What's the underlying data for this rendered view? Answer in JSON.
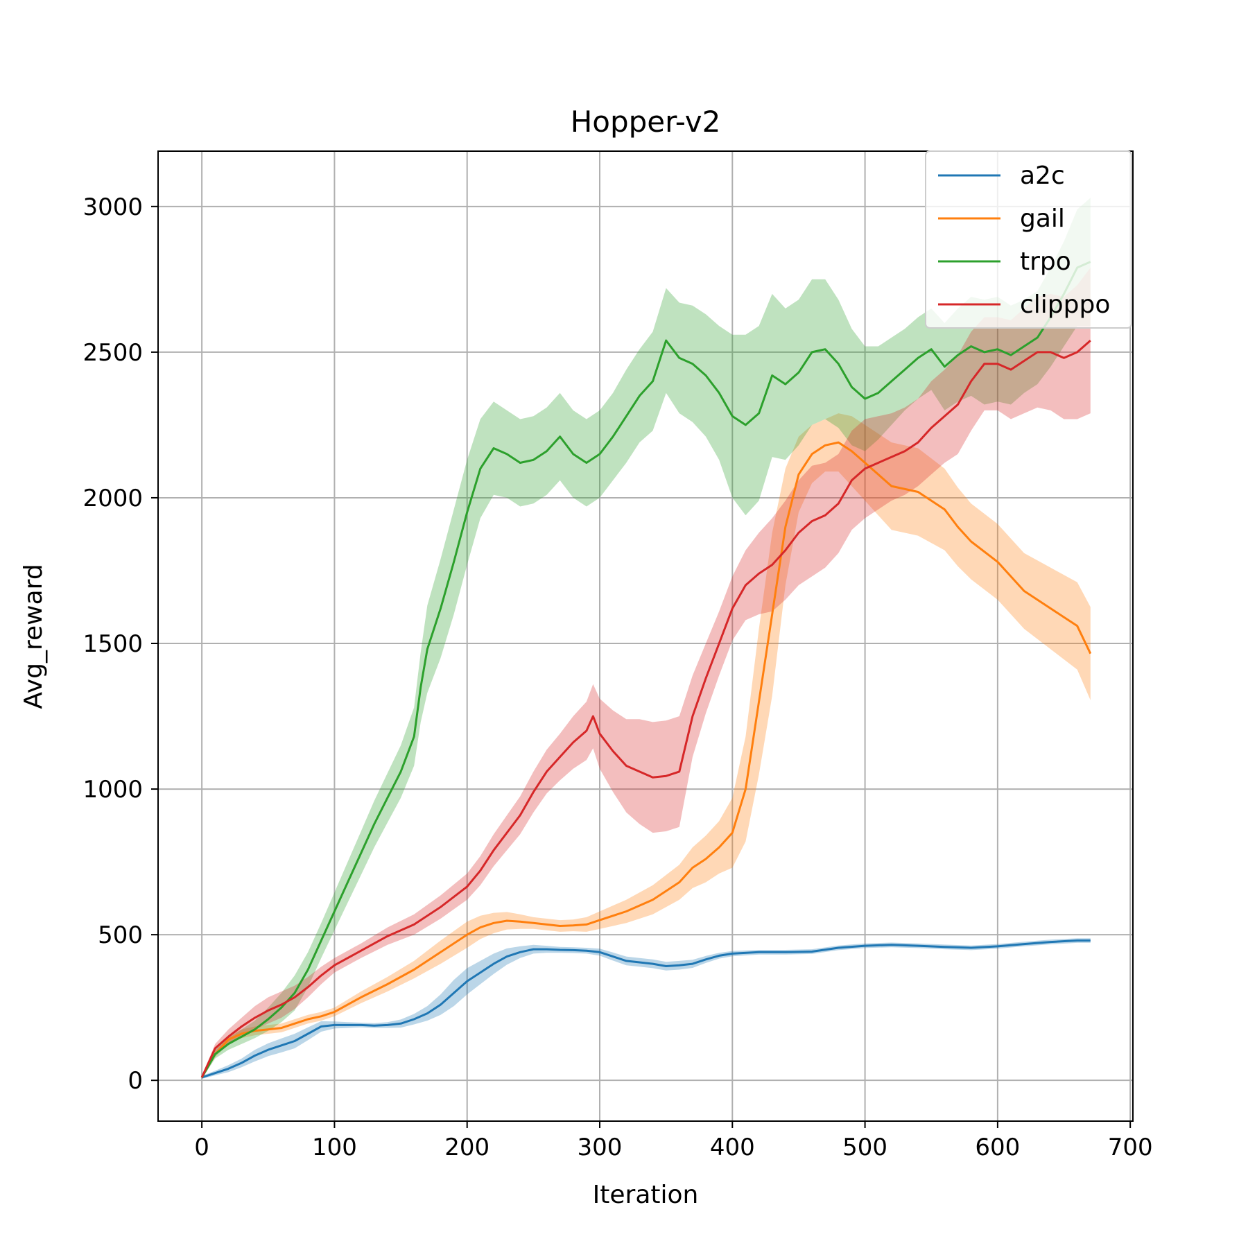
{
  "chart_data": {
    "type": "line",
    "title": "Hopper-v2",
    "xlabel": "Iteration",
    "ylabel": "Avg_reward",
    "xlim": [
      -33,
      702
    ],
    "ylim": [
      -140,
      3190
    ],
    "xticks": [
      0,
      100,
      200,
      300,
      400,
      500,
      600,
      700
    ],
    "yticks": [
      0,
      500,
      1000,
      1500,
      2000,
      2500,
      3000
    ],
    "grid": true,
    "legend_position": "top-right",
    "series": [
      {
        "name": "a2c",
        "color": "#1f77b4",
        "x": [
          0,
          10,
          20,
          30,
          40,
          50,
          60,
          70,
          80,
          90,
          100,
          110,
          120,
          130,
          140,
          150,
          160,
          170,
          180,
          190,
          200,
          210,
          220,
          230,
          240,
          250,
          260,
          270,
          280,
          290,
          300,
          310,
          320,
          330,
          340,
          350,
          360,
          370,
          380,
          390,
          400,
          420,
          440,
          460,
          480,
          500,
          520,
          540,
          560,
          580,
          600,
          620,
          640,
          660,
          670
        ],
        "y": [
          10,
          25,
          40,
          60,
          85,
          105,
          120,
          135,
          160,
          185,
          190,
          190,
          190,
          188,
          190,
          195,
          210,
          230,
          260,
          300,
          340,
          370,
          400,
          425,
          440,
          450,
          450,
          448,
          447,
          445,
          440,
          425,
          410,
          405,
          400,
          392,
          395,
          400,
          415,
          428,
          435,
          440,
          440,
          442,
          455,
          462,
          465,
          462,
          458,
          455,
          460,
          468,
          475,
          480,
          480
        ],
        "err": [
          5,
          8,
          12,
          15,
          20,
          22,
          24,
          25,
          22,
          18,
          12,
          10,
          8,
          8,
          10,
          14,
          18,
          25,
          35,
          45,
          45,
          40,
          35,
          28,
          20,
          15,
          12,
          10,
          10,
          10,
          12,
          14,
          15,
          15,
          15,
          15,
          15,
          14,
          12,
          10,
          9,
          8,
          8,
          8,
          8,
          8,
          8,
          8,
          8,
          8,
          8,
          8,
          8,
          8,
          8
        ]
      },
      {
        "name": "gail",
        "color": "#ff7f0e",
        "x": [
          0,
          10,
          20,
          30,
          40,
          50,
          60,
          70,
          80,
          90,
          100,
          120,
          140,
          160,
          180,
          200,
          210,
          220,
          230,
          240,
          250,
          260,
          270,
          280,
          290,
          300,
          320,
          340,
          360,
          370,
          380,
          390,
          400,
          410,
          420,
          430,
          440,
          450,
          460,
          470,
          480,
          490,
          500,
          510,
          520,
          540,
          560,
          570,
          580,
          600,
          620,
          640,
          660,
          670
        ],
        "y": [
          10,
          90,
          140,
          160,
          170,
          175,
          180,
          195,
          210,
          220,
          235,
          285,
          330,
          380,
          440,
          500,
          525,
          540,
          548,
          545,
          540,
          535,
          530,
          532,
          535,
          550,
          580,
          620,
          680,
          730,
          760,
          800,
          850,
          1000,
          1300,
          1600,
          1900,
          2080,
          2150,
          2180,
          2190,
          2160,
          2120,
          2080,
          2040,
          2020,
          1960,
          1900,
          1850,
          1780,
          1680,
          1620,
          1560,
          1465
        ],
        "err": [
          5,
          10,
          15,
          15,
          15,
          15,
          15,
          15,
          15,
          15,
          15,
          20,
          25,
          30,
          40,
          45,
          40,
          35,
          30,
          25,
          20,
          20,
          20,
          20,
          25,
          30,
          40,
          50,
          60,
          70,
          80,
          90,
          120,
          180,
          250,
          280,
          200,
          130,
          100,
          90,
          100,
          120,
          130,
          140,
          150,
          150,
          140,
          135,
          130,
          130,
          130,
          140,
          150,
          160
        ]
      },
      {
        "name": "trpo",
        "color": "#2ca02c",
        "x": [
          0,
          10,
          20,
          30,
          40,
          50,
          60,
          70,
          80,
          90,
          100,
          110,
          120,
          130,
          140,
          150,
          160,
          165,
          170,
          180,
          190,
          200,
          210,
          220,
          230,
          240,
          250,
          260,
          270,
          280,
          290,
          300,
          310,
          320,
          330,
          340,
          350,
          360,
          370,
          380,
          390,
          400,
          410,
          420,
          430,
          440,
          450,
          460,
          470,
          480,
          490,
          500,
          510,
          520,
          530,
          540,
          550,
          560,
          570,
          580,
          590,
          600,
          610,
          620,
          630,
          640,
          650,
          660,
          670
        ],
        "y": [
          10,
          90,
          125,
          150,
          175,
          210,
          250,
          300,
          380,
          480,
          580,
          680,
          780,
          880,
          970,
          1060,
          1180,
          1350,
          1480,
          1620,
          1780,
          1950,
          2100,
          2170,
          2150,
          2120,
          2130,
          2160,
          2210,
          2150,
          2120,
          2150,
          2210,
          2280,
          2350,
          2400,
          2540,
          2480,
          2460,
          2420,
          2360,
          2280,
          2250,
          2290,
          2420,
          2390,
          2430,
          2500,
          2510,
          2460,
          2380,
          2340,
          2360,
          2400,
          2440,
          2480,
          2510,
          2450,
          2490,
          2520,
          2500,
          2510,
          2490,
          2520,
          2550,
          2620,
          2700,
          2790,
          2810
        ],
        "err": [
          5,
          15,
          20,
          25,
          30,
          40,
          50,
          60,
          60,
          60,
          65,
          70,
          75,
          80,
          85,
          90,
          100,
          120,
          150,
          170,
          180,
          180,
          170,
          160,
          150,
          150,
          150,
          150,
          150,
          150,
          150,
          150,
          150,
          160,
          160,
          170,
          180,
          190,
          200,
          210,
          230,
          280,
          310,
          300,
          280,
          260,
          250,
          250,
          240,
          220,
          200,
          180,
          160,
          150,
          140,
          140,
          140,
          150,
          160,
          170,
          180,
          180,
          170,
          160,
          160,
          170,
          180,
          200,
          220
        ]
      },
      {
        "name": "clipppo",
        "color": "#d62728",
        "x": [
          0,
          10,
          20,
          30,
          40,
          50,
          60,
          70,
          80,
          90,
          100,
          120,
          140,
          160,
          180,
          200,
          210,
          220,
          230,
          240,
          250,
          260,
          270,
          280,
          290,
          295,
          300,
          310,
          320,
          330,
          340,
          350,
          360,
          370,
          380,
          390,
          400,
          410,
          420,
          430,
          440,
          450,
          460,
          470,
          480,
          490,
          500,
          510,
          520,
          530,
          540,
          550,
          560,
          570,
          580,
          590,
          600,
          610,
          620,
          630,
          640,
          650,
          660,
          670
        ],
        "y": [
          10,
          110,
          150,
          185,
          215,
          240,
          260,
          285,
          320,
          360,
          395,
          445,
          495,
          535,
          595,
          665,
          720,
          790,
          850,
          910,
          990,
          1060,
          1110,
          1160,
          1200,
          1250,
          1190,
          1130,
          1080,
          1060,
          1040,
          1045,
          1060,
          1250,
          1380,
          1500,
          1620,
          1700,
          1740,
          1770,
          1820,
          1880,
          1920,
          1940,
          1980,
          2060,
          2100,
          2120,
          2140,
          2160,
          2190,
          2240,
          2280,
          2320,
          2400,
          2460,
          2460,
          2440,
          2470,
          2500,
          2500,
          2480,
          2500,
          2540
        ],
        "err": [
          5,
          15,
          25,
          30,
          40,
          45,
          45,
          40,
          35,
          30,
          25,
          25,
          30,
          35,
          40,
          45,
          50,
          55,
          60,
          65,
          70,
          75,
          80,
          90,
          100,
          110,
          120,
          140,
          160,
          180,
          190,
          190,
          190,
          140,
          120,
          110,
          110,
          120,
          140,
          160,
          170,
          180,
          190,
          180,
          170,
          170,
          170,
          160,
          150,
          150,
          150,
          160,
          160,
          170,
          170,
          160,
          160,
          170,
          180,
          190,
          200,
          210,
          230,
          250
        ]
      }
    ]
  }
}
